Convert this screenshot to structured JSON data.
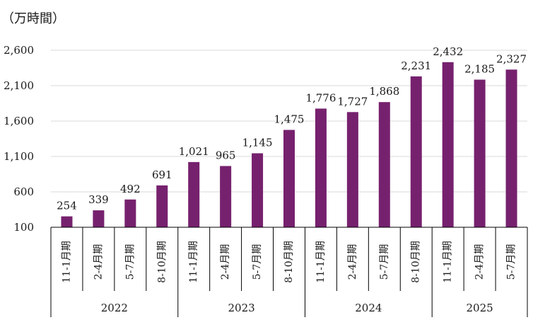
{
  "chart_data": {
    "type": "bar",
    "unit_label": "（万時間）",
    "ylim": [
      100,
      2600
    ],
    "yticks": [
      100,
      600,
      1100,
      1600,
      2100,
      2600
    ],
    "ytick_labels": [
      "100",
      "600",
      "1,100",
      "1,600",
      "2,100",
      "2,600"
    ],
    "grid": true,
    "bar_color": "#76216e",
    "categories": [
      "11-1月期",
      "2-4月期",
      "5-7月期",
      "8-10月期",
      "11-1月期",
      "2-4月期",
      "5-7月期",
      "8-10月期",
      "11-1月期",
      "2-4月期",
      "5-7月期",
      "8-10月期",
      "11-1月期",
      "2-4月期",
      "5-7月期"
    ],
    "values": [
      254,
      339,
      492,
      691,
      1021,
      965,
      1145,
      1475,
      1776,
      1727,
      1868,
      2231,
      2432,
      2185,
      2327
    ],
    "value_labels": [
      "254",
      "339",
      "492",
      "691",
      "1,021",
      "965",
      "1,145",
      "1,475",
      "1,776",
      "1,727",
      "1,868",
      "2,231",
      "2,432",
      "2,185",
      "2,327"
    ],
    "groups": [
      {
        "label": "2022",
        "count": 4
      },
      {
        "label": "2023",
        "count": 4
      },
      {
        "label": "2024",
        "count": 4
      },
      {
        "label": "2025",
        "count": 3
      }
    ]
  }
}
